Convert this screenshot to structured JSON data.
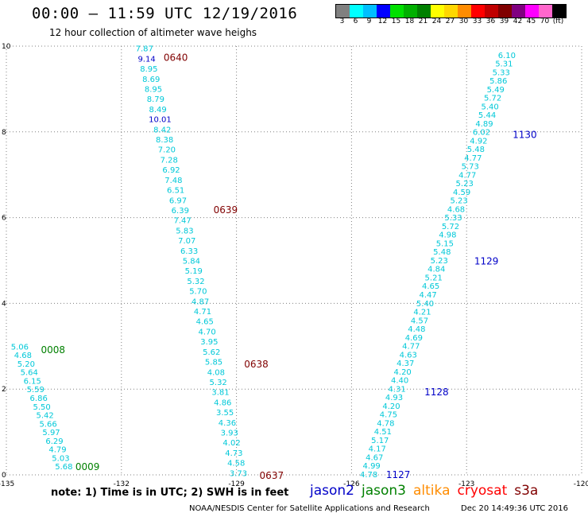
{
  "title": "00:00 – 11:59 UTC 12/19/2016",
  "subtitle": "12 hour collection of altimeter wave heighs",
  "colorbar": {
    "colors": [
      "#808080",
      "#00ffff",
      "#00bfff",
      "#0000ff",
      "#00e000",
      "#00b000",
      "#008000",
      "#ffff00",
      "#ffd700",
      "#ff8c00",
      "#ff0000",
      "#c00000",
      "#800000",
      "#800080",
      "#ff00ff",
      "#ff66cc",
      "#000000"
    ],
    "labels": [
      "3",
      "6",
      "9",
      "12",
      "15",
      "18",
      "21",
      "24",
      "27",
      "30",
      "33",
      "36",
      "39",
      "42",
      "45",
      "70",
      "(ft)"
    ]
  },
  "colors": {
    "cyan": "#00c8d8",
    "blue": "#0000c8",
    "green": "#008000",
    "darkred": "#800000",
    "grid": "#808080",
    "orange": "#ff8c00",
    "red": "#ff0000"
  },
  "chart_data": {
    "type": "map",
    "xlim": [
      -135,
      -120
    ],
    "ylim": [
      0,
      10
    ],
    "x_ticks": [
      "-135",
      "-132",
      "-129",
      "-126",
      "-123",
      "-120"
    ],
    "y_ticks": [
      "0",
      "2",
      "4",
      "6",
      "8",
      "10"
    ],
    "units": "ft",
    "tracks": [
      {
        "satellite": "jason3",
        "time_labels": [
          {
            "text": "0008",
            "lon": -134.1,
            "lat": 2.93,
            "color": "green"
          },
          {
            "text": "0009",
            "lon": -133.2,
            "lat": 0.2,
            "color": "green"
          }
        ],
        "start": [
          -134.65,
          3.0
        ],
        "end": [
          -133.5,
          0.2
        ],
        "values": [
          "5.06",
          "4.68",
          "5.20",
          "5.64",
          "6.15",
          "5.59",
          "6.86",
          "5.50",
          "5.42",
          "5.66",
          "5.97",
          "6.29",
          "4.79",
          "5.03",
          "5.68"
        ],
        "value_colors": [
          "cyan",
          "cyan",
          "cyan",
          "cyan",
          "cyan",
          "cyan",
          "cyan",
          "cyan",
          "cyan",
          "cyan",
          "cyan",
          "cyan",
          "cyan",
          "cyan",
          "cyan"
        ]
      },
      {
        "satellite": "s3a",
        "time_labels": [
          {
            "text": "0640",
            "lon": -130.9,
            "lat": 9.75,
            "color": "darkred"
          },
          {
            "text": "0639",
            "lon": -129.6,
            "lat": 6.2,
            "color": "darkred"
          },
          {
            "text": "0638",
            "lon": -128.8,
            "lat": 2.6,
            "color": "darkred"
          },
          {
            "text": "0637",
            "lon": -128.4,
            "lat": 0.0,
            "color": "darkred"
          }
        ],
        "start": [
          -131.4,
          9.95
        ],
        "end": [
          -128.95,
          0.05
        ],
        "values": [
          "7.87",
          "9.14",
          "8.95",
          "8.69",
          "8.95",
          "8.79",
          "8.49",
          "10.01",
          "8.42",
          "8.38",
          "7.20",
          "7.28",
          "6.92",
          "7.48",
          "6.51",
          "6.97",
          "6.39",
          "7.47",
          "5.83",
          "7.07",
          "6.33",
          "5.84",
          "5.19",
          "5.32",
          "5.70",
          "4.87",
          "4.71",
          "4.65",
          "4.70",
          "3.95",
          "5.62",
          "5.85",
          "4.08",
          "5.32",
          "3.81",
          "4.86",
          "3.55",
          "4.36",
          "3.93",
          "4.02",
          "4.73",
          "4.58",
          "3.73"
        ],
        "value_colors": [
          "cyan",
          "blue",
          "cyan",
          "cyan",
          "cyan",
          "cyan",
          "cyan",
          "blue",
          "cyan",
          "cyan",
          "cyan",
          "cyan",
          "cyan",
          "cyan",
          "cyan",
          "cyan",
          "cyan",
          "cyan",
          "cyan",
          "cyan",
          "cyan",
          "cyan",
          "cyan",
          "cyan",
          "cyan",
          "cyan",
          "cyan",
          "cyan",
          "cyan",
          "cyan",
          "cyan",
          "cyan",
          "cyan",
          "cyan",
          "cyan",
          "cyan",
          "cyan",
          "cyan",
          "cyan",
          "cyan",
          "cyan",
          "cyan",
          "cyan"
        ]
      },
      {
        "satellite": "jason2",
        "time_labels": [
          {
            "text": "1130",
            "lon": -121.8,
            "lat": 7.95,
            "color": "blue"
          },
          {
            "text": "1129",
            "lon": -122.8,
            "lat": 5.0,
            "color": "blue"
          },
          {
            "text": "1128",
            "lon": -124.1,
            "lat": 1.95,
            "color": "blue"
          },
          {
            "text": "1127",
            "lon": -125.1,
            "lat": 0.02,
            "color": "blue"
          }
        ],
        "start": [
          -121.95,
          9.8
        ],
        "end": [
          -125.55,
          0.02
        ],
        "values": [
          "6.10",
          "5.31",
          "5.33",
          "5.86",
          "5.49",
          "5.72",
          "5.40",
          "5.44",
          "4.89",
          "6.02",
          "4.92",
          "5.48",
          "4.77",
          "5.73",
          "4.77",
          "5.23",
          "4.59",
          "5.23",
          "4.68",
          "5.33",
          "5.72",
          "4.98",
          "5.15",
          "5.48",
          "5.23",
          "4.84",
          "5.21",
          "4.65",
          "4.47",
          "5.40",
          "4.21",
          "4.57",
          "4.48",
          "4.69",
          "4.77",
          "4.63",
          "4.37",
          "4.20",
          "4.40",
          "4.31",
          "4.93",
          "4.20",
          "4.75",
          "4.78",
          "4.51",
          "5.17",
          "4.17",
          "4.67",
          "4.99",
          "4.78"
        ],
        "value_colors": [
          "cyan",
          "cyan",
          "cyan",
          "cyan",
          "cyan",
          "cyan",
          "cyan",
          "cyan",
          "cyan",
          "cyan",
          "cyan",
          "cyan",
          "cyan",
          "cyan",
          "cyan",
          "cyan",
          "cyan",
          "cyan",
          "cyan",
          "cyan",
          "cyan",
          "cyan",
          "cyan",
          "cyan",
          "cyan",
          "cyan",
          "cyan",
          "cyan",
          "cyan",
          "cyan",
          "cyan",
          "cyan",
          "cyan",
          "cyan",
          "cyan",
          "cyan",
          "cyan",
          "cyan",
          "cyan",
          "cyan",
          "cyan",
          "cyan",
          "cyan",
          "cyan",
          "cyan",
          "cyan",
          "cyan",
          "cyan",
          "cyan",
          "cyan"
        ]
      }
    ]
  },
  "note": "note: 1) Time is in UTC; 2) SWH is in feet",
  "legend": [
    {
      "label": "jason2",
      "color": "#0000c8"
    },
    {
      "label": "jason3",
      "color": "#008000"
    },
    {
      "label": "altika",
      "color": "#ff8c00"
    },
    {
      "label": "cryosat",
      "color": "#ff0000"
    },
    {
      "label": "s3a",
      "color": "#800000"
    }
  ],
  "credit": "NOAA/NESDIS Center for Satellite Applications and Research",
  "timestamp": "Dec 20 14:49:36 UTC 2016"
}
